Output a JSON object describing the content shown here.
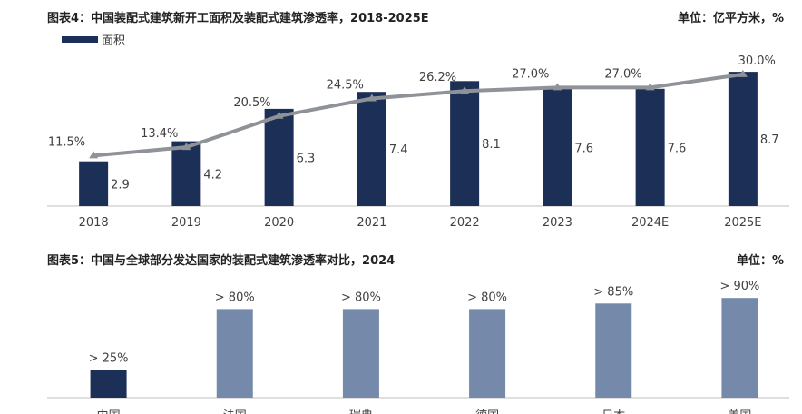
{
  "colors": {
    "bar_dark": "#1c2f57",
    "bar_light": "#7589aa",
    "line": "#8f9398",
    "axis": "#bfbfbf",
    "text": "#404040"
  },
  "chart_data": [
    {
      "type": "bar",
      "title": "图表4：中国装配式建筑新开工面积及装配式建筑渗透率，2018-2025E",
      "unit": "单位：亿平方米，%",
      "legend": [
        "面积"
      ],
      "categories": [
        "2018",
        "2019",
        "2020",
        "2021",
        "2022",
        "2023",
        "2024E",
        "2025E"
      ],
      "series": [
        {
          "name": "面积",
          "type": "bar",
          "values": [
            2.9,
            4.2,
            6.3,
            7.4,
            8.1,
            7.6,
            7.6,
            8.7
          ],
          "labels": [
            "2.9",
            "4.2",
            "6.3",
            "7.4",
            "8.1",
            "7.6",
            "7.6",
            "8.7"
          ]
        },
        {
          "type": "line",
          "values": [
            11.5,
            13.4,
            20.5,
            24.5,
            26.2,
            27.0,
            27.0,
            30.0
          ],
          "labels": [
            "11.5%",
            "13.4%",
            "20.5%",
            "24.5%",
            "26.2%",
            "27.0%",
            "27.0%",
            "30.0%"
          ]
        }
      ],
      "ylim": [
        0,
        9
      ],
      "ylim_secondary": [
        0,
        31
      ]
    },
    {
      "type": "bar",
      "title": "图表5：中国与全球部分发达国家的装配式建筑渗透率对比，2024",
      "unit": "单位：%",
      "categories": [
        "中国",
        "法国",
        "瑞典",
        "德国",
        "日本",
        "美国"
      ],
      "values": [
        25,
        80,
        80,
        80,
        85,
        90
      ],
      "labels": [
        "> 25%",
        "> 80%",
        "> 80%",
        "> 80%",
        "> 85%",
        "> 90%"
      ],
      "highlight_index": 0,
      "ylim": [
        0,
        100
      ]
    }
  ]
}
